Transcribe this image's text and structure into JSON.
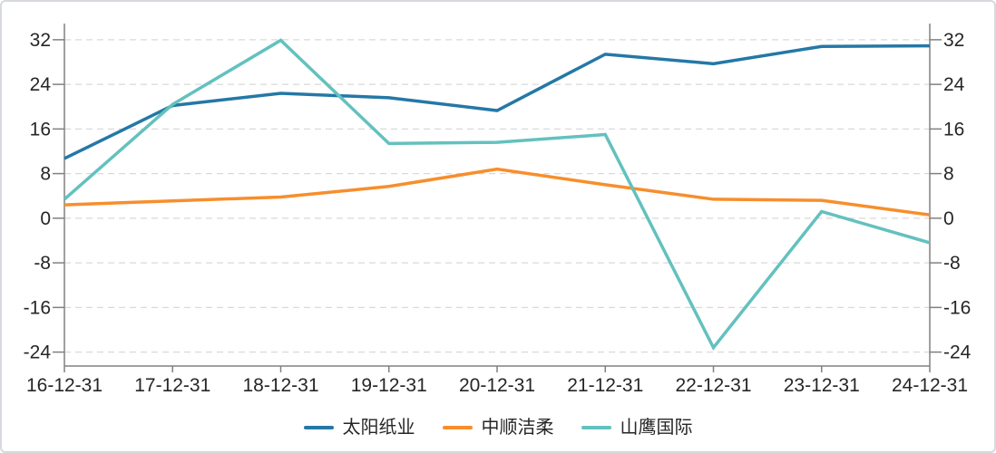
{
  "chart_data": {
    "type": "line",
    "categories": [
      "16-12-31",
      "17-12-31",
      "18-12-31",
      "19-12-31",
      "20-12-31",
      "21-12-31",
      "22-12-31",
      "23-12-31",
      "24-12-31"
    ],
    "series": [
      {
        "name": "太阳纸业",
        "color": "#2478A6",
        "values": [
          10.7,
          20.2,
          22.4,
          21.6,
          19.3,
          29.4,
          27.7,
          30.8,
          30.9
        ]
      },
      {
        "name": "中顺洁柔",
        "color": "#F78E2C",
        "values": [
          2.4,
          3.1,
          3.8,
          5.7,
          8.8,
          6.0,
          3.4,
          3.2,
          0.6
        ]
      },
      {
        "name": "山鹰国际",
        "color": "#63C1BE",
        "values": [
          3.4,
          20.4,
          31.9,
          13.4,
          13.6,
          15.0,
          -23.2,
          1.2,
          -4.4
        ]
      }
    ],
    "y_ticks": [
      32,
      24,
      16,
      8,
      0,
      -8,
      -16,
      -24
    ],
    "ylim": [
      -26.5,
      34.9
    ],
    "dual_y_axis": true,
    "grid": "horizontal-dashed",
    "legend_position": "bottom",
    "title": "",
    "xlabel": "",
    "ylabel": ""
  },
  "style": {
    "axis_color": "#808080",
    "grid_color": "#D9D9D9",
    "text_color": "#262626",
    "background": "#FFFFFF",
    "border_color": "#D6D9DE"
  }
}
